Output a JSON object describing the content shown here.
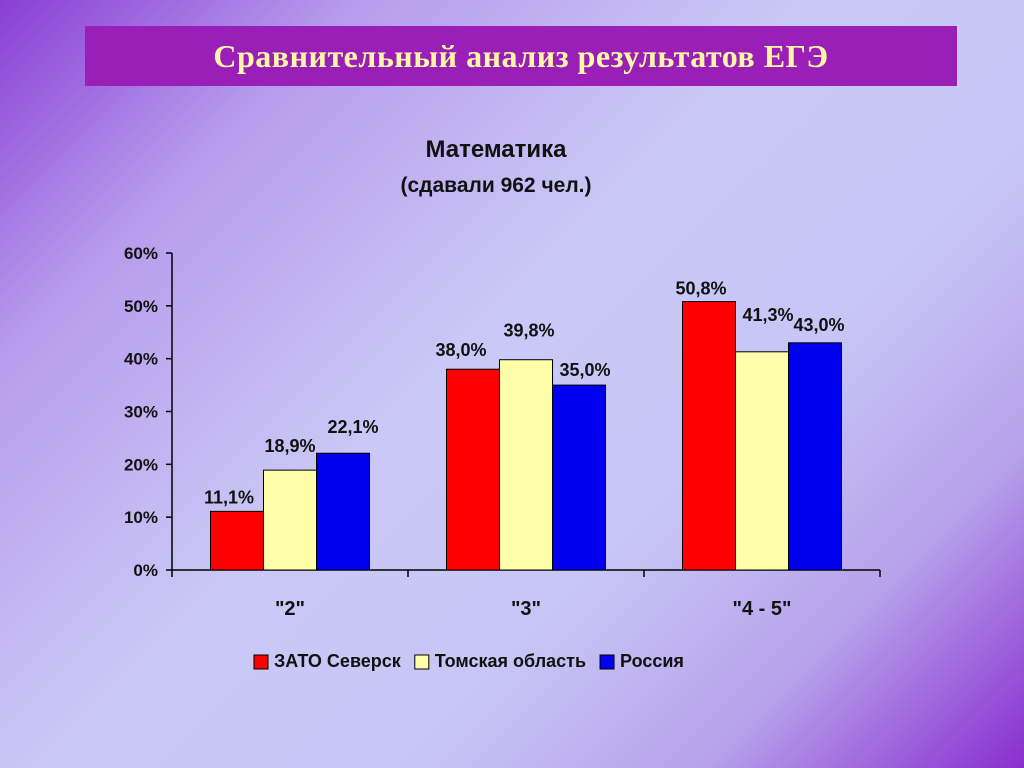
{
  "slide": {
    "title": "Сравнительный анализ результатов ЕГЭ"
  },
  "colors": {
    "title_bar": "#9a1fb8",
    "title_text": "#fff7a6"
  },
  "chart_data": {
    "type": "bar",
    "title": "Математика",
    "subtitle": "(сдавали 962 чел.)",
    "categories": [
      "\"2\"",
      "\"3\"",
      "\"4 - 5\""
    ],
    "series": [
      {
        "name": "ЗАТО Северск",
        "color": "#ff0000",
        "values": [
          11.1,
          38.0,
          50.8
        ],
        "labels": [
          "11,1%",
          "38,0%",
          "50,8%"
        ]
      },
      {
        "name": "Томская область",
        "color": "#ffffaa",
        "values": [
          18.9,
          39.8,
          41.3
        ],
        "labels": [
          "18,9%",
          "39,8%",
          "41,3%"
        ]
      },
      {
        "name": "Россия",
        "color": "#0000ee",
        "values": [
          22.1,
          35.0,
          43.0
        ],
        "labels": [
          "22,1%",
          "35,0%",
          "43,0%"
        ]
      }
    ],
    "ylim": [
      0,
      60
    ],
    "yticks": [
      {
        "value": 0,
        "label": "0%"
      },
      {
        "value": 10,
        "label": "10%"
      },
      {
        "value": 20,
        "label": "20%"
      },
      {
        "value": 30,
        "label": "30%"
      },
      {
        "value": 40,
        "label": "40%"
      },
      {
        "value": 50,
        "label": "50%"
      },
      {
        "value": 60,
        "label": "60%"
      }
    ],
    "grid": false,
    "legend_position": "bottom"
  }
}
